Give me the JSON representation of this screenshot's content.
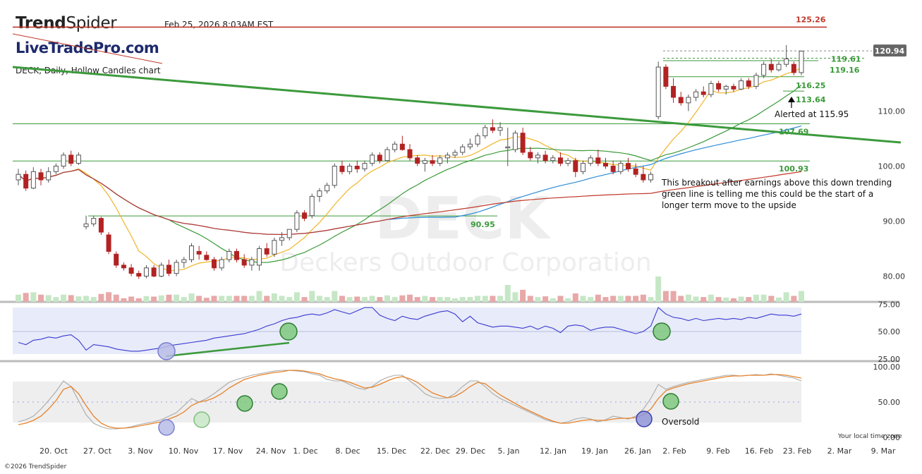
{
  "header": {
    "brand_bold": "Trend",
    "brand_light": "Spider",
    "datetime": "Feb 25, 2026 8:03AM EST",
    "watermark_site": "LiveTradePro.com",
    "chart_label": "DECK, Daily, Hollow Candles chart",
    "copyright": "©2026 TrendSpider",
    "local_time_note": "Your local time zone"
  },
  "colors": {
    "up": "#ffffff",
    "down": "#b22222",
    "ma_fast": "#f0b429",
    "ma_mid": "#3a9a3a",
    "ma_slow": "#2b8cd6",
    "ma_long": "#c0392b",
    "trendline": "#3c9a3c",
    "rsi": "#3a3ad0",
    "stoch_k": "#aaaaaa",
    "stoch_d": "#e8822a",
    "alert_line": "#c0392b"
  },
  "chart_data": [
    {
      "type": "candlestick",
      "title": "DECK, Daily, Hollow Candles chart",
      "watermark_symbol": "DECK",
      "watermark_name": "Deckers Outdoor Corporation",
      "price_ticks": [
        80.0,
        90.0,
        100.0,
        110.0
      ],
      "last_price": "120.94",
      "ylim": [
        77,
        126
      ],
      "date_ticks": [
        "20. Oct",
        "27. Oct",
        "3. Nov",
        "10. Nov",
        "17. Nov",
        "24. Nov",
        "1. Dec",
        "8. Dec",
        "15. Dec",
        "22. Dec",
        "29. Dec",
        "5. Jan",
        "12. Jan",
        "19. Jan",
        "26. Jan",
        "2. Feb",
        "9. Feb",
        "16. Feb",
        "23. Feb",
        "2. Mar",
        "9. Mar"
      ],
      "horizontal_levels": [
        {
          "label": "125.26",
          "value": 125.26,
          "color": "#c0392b"
        },
        {
          "label": "119.61",
          "value": 119.61,
          "color": "#3a9a3a"
        },
        {
          "label": "119.16",
          "value": 119.16,
          "color": "#3a9a3a"
        },
        {
          "label": "116.25",
          "value": 116.25,
          "color": "#3a9a3a"
        },
        {
          "label": "113.64",
          "value": 113.64,
          "color": "#3a9a3a"
        },
        {
          "label": "107.69",
          "value": 107.69,
          "color": "#3a9a3a"
        },
        {
          "label": "100.93",
          "value": 100.93,
          "color": "#3a9a3a"
        },
        {
          "label": "90.95",
          "value": 90.95,
          "color": "#3a9a3a"
        }
      ],
      "annotations": [
        {
          "text": "Alerted at 115.95"
        },
        {
          "text": "This breakout after earnings above this down trending green line is telling me this could be the start of a longer term move to the upside"
        }
      ],
      "candles": [
        [
          97.5,
          99.5,
          96.5,
          98.5
        ],
        [
          98.5,
          99.2,
          95.5,
          96.0
        ],
        [
          96.0,
          99.8,
          95.8,
          99.0
        ],
        [
          98.8,
          99.5,
          96.5,
          97.5
        ],
        [
          97.5,
          99.8,
          97.0,
          99.0
        ],
        [
          99.0,
          100.5,
          98.5,
          100.0
        ],
        [
          100.0,
          102.5,
          99.5,
          102.0
        ],
        [
          102.0,
          102.8,
          100.0,
          100.5
        ],
        [
          100.5,
          102.5,
          100.2,
          102.0
        ],
        [
          89.0,
          91.0,
          88.5,
          89.5
        ],
        [
          89.5,
          91.0,
          89.0,
          90.5
        ],
        [
          90.5,
          90.8,
          87.5,
          88.0
        ],
        [
          87.5,
          88.0,
          84.0,
          84.5
        ],
        [
          84.0,
          84.5,
          81.5,
          82.0
        ],
        [
          82.0,
          82.5,
          81.0,
          81.5
        ],
        [
          81.5,
          82.2,
          80.0,
          80.5
        ],
        [
          80.5,
          81.0,
          79.5,
          80.0
        ],
        [
          80.0,
          82.0,
          79.6,
          81.5
        ],
        [
          81.5,
          82.0,
          79.8,
          80.0
        ],
        [
          80.0,
          82.5,
          79.8,
          82.0
        ],
        [
          82.0,
          83.0,
          80.0,
          80.5
        ],
        [
          80.5,
          83.0,
          80.0,
          82.5
        ],
        [
          82.5,
          83.5,
          81.5,
          83.0
        ],
        [
          83.0,
          86.0,
          82.5,
          85.5
        ],
        [
          84.5,
          85.5,
          83.0,
          84.0
        ],
        [
          83.8,
          84.5,
          82.8,
          83.0
        ],
        [
          83.0,
          83.5,
          81.0,
          81.5
        ],
        [
          81.5,
          83.5,
          81.0,
          83.0
        ],
        [
          83.0,
          85.0,
          82.5,
          84.5
        ],
        [
          84.5,
          85.0,
          82.5,
          83.0
        ],
        [
          83.0,
          84.0,
          81.5,
          82.0
        ],
        [
          82.0,
          83.5,
          81.0,
          83.0
        ],
        [
          82.0,
          85.5,
          81.0,
          85.0
        ],
        [
          85.0,
          86.0,
          83.5,
          84.0
        ],
        [
          84.0,
          87.0,
          83.5,
          86.5
        ],
        [
          86.5,
          88.0,
          85.5,
          87.0
        ],
        [
          87.0,
          88.5,
          86.5,
          88.5
        ],
        [
          88.5,
          92.0,
          88.0,
          91.5
        ],
        [
          91.5,
          92.0,
          90.0,
          90.5
        ],
        [
          91.0,
          95.0,
          90.5,
          94.5
        ],
        [
          94.5,
          96.0,
          93.5,
          95.5
        ],
        [
          95.5,
          97.0,
          95.0,
          96.5
        ],
        [
          96.5,
          100.5,
          96.0,
          100.0
        ],
        [
          100.0,
          101.0,
          98.5,
          99.0
        ],
        [
          99.0,
          100.5,
          98.5,
          100.0
        ],
        [
          100.0,
          101.0,
          98.8,
          99.5
        ],
        [
          99.5,
          101.0,
          99.0,
          100.5
        ],
        [
          100.5,
          102.5,
          100.0,
          102.0
        ],
        [
          102.0,
          102.5,
          100.5,
          101.0
        ],
        [
          101.0,
          103.5,
          100.8,
          103.0
        ],
        [
          103.0,
          104.5,
          102.5,
          104.0
        ],
        [
          104.0,
          105.5,
          102.8,
          103.0
        ],
        [
          103.0,
          104.0,
          101.0,
          101.5
        ],
        [
          101.5,
          102.0,
          100.0,
          100.5
        ],
        [
          100.5,
          101.5,
          99.0,
          101.0
        ],
        [
          101.0,
          102.0,
          100.0,
          100.5
        ],
        [
          100.5,
          102.0,
          100.0,
          101.5
        ],
        [
          101.5,
          102.5,
          100.5,
          102.0
        ],
        [
          102.0,
          103.0,
          101.5,
          102.5
        ],
        [
          102.5,
          104.0,
          102.0,
          103.5
        ],
        [
          103.5,
          105.0,
          103.0,
          104.0
        ],
        [
          104.0,
          106.0,
          103.5,
          105.5
        ],
        [
          105.5,
          107.5,
          105.0,
          107.0
        ],
        [
          107.0,
          108.5,
          106.0,
          106.5
        ],
        [
          106.5,
          108.0,
          105.5,
          107.0
        ],
        [
          103.5,
          107.0,
          100.0,
          103.5
        ],
        [
          103.0,
          106.5,
          102.5,
          106.0
        ],
        [
          106.0,
          107.0,
          102.0,
          102.5
        ],
        [
          102.5,
          103.5,
          101.0,
          101.5
        ],
        [
          101.5,
          102.5,
          100.5,
          102.0
        ],
        [
          102.0,
          102.8,
          100.5,
          101.0
        ],
        [
          101.0,
          102.0,
          100.5,
          101.5
        ],
        [
          101.5,
          102.5,
          100.0,
          100.5
        ],
        [
          100.5,
          101.5,
          100.0,
          101.0
        ],
        [
          101.0,
          101.5,
          98.0,
          99.0
        ],
        [
          99.0,
          101.0,
          98.5,
          100.5
        ],
        [
          100.5,
          102.0,
          100.0,
          101.5
        ],
        [
          101.5,
          103.0,
          100.0,
          100.5
        ],
        [
          100.5,
          101.5,
          99.5,
          100.0
        ],
        [
          100.0,
          101.0,
          98.5,
          99.0
        ],
        [
          99.0,
          101.0,
          98.5,
          100.5
        ],
        [
          100.5,
          101.5,
          99.0,
          99.5
        ],
        [
          99.5,
          100.5,
          98.0,
          98.5
        ],
        [
          98.5,
          100.0,
          97.0,
          97.5
        ],
        [
          97.5,
          99.0,
          97.0,
          98.5
        ],
        [
          109.0,
          119.0,
          108.5,
          118.0
        ],
        [
          118.0,
          118.5,
          114.0,
          114.5
        ],
        [
          114.5,
          116.0,
          111.5,
          112.5
        ],
        [
          112.5,
          113.5,
          111.0,
          111.5
        ],
        [
          111.5,
          113.0,
          110.0,
          112.5
        ],
        [
          112.5,
          114.0,
          111.8,
          113.5
        ],
        [
          113.5,
          114.5,
          112.5,
          113.0
        ],
        [
          113.0,
          115.5,
          112.5,
          115.0
        ],
        [
          115.0,
          115.5,
          113.5,
          114.0
        ],
        [
          114.0,
          114.8,
          113.0,
          114.5
        ],
        [
          114.5,
          115.0,
          113.5,
          114.0
        ],
        [
          114.0,
          116.0,
          113.8,
          115.5
        ],
        [
          115.5,
          116.0,
          114.0,
          114.5
        ],
        [
          114.5,
          117.0,
          114.0,
          116.5
        ],
        [
          116.5,
          119.0,
          116.0,
          118.5
        ],
        [
          118.5,
          119.5,
          117.0,
          117.5
        ],
        [
          117.5,
          119.0,
          117.2,
          118.5
        ],
        [
          118.5,
          122.0,
          118.0,
          119.5
        ],
        [
          118.5,
          119.0,
          116.5,
          117.0
        ],
        [
          117.0,
          121.0,
          116.5,
          120.9
        ]
      ]
    },
    {
      "type": "line",
      "indicator": "RSI",
      "ticks": [
        "75.00",
        "50.00",
        "25.00"
      ],
      "ylim": [
        25,
        75
      ],
      "values": [
        40,
        38,
        42,
        43,
        45,
        44,
        46,
        47,
        42,
        33,
        38,
        37,
        36,
        34,
        33,
        32,
        32,
        33,
        34,
        35,
        37,
        38,
        39,
        40,
        41,
        42,
        44,
        45,
        46,
        47,
        48,
        50,
        52,
        55,
        57,
        60,
        62,
        63,
        65,
        66,
        65,
        67,
        70,
        68,
        66,
        69,
        72,
        72,
        65,
        62,
        60,
        64,
        62,
        61,
        64,
        66,
        68,
        69,
        66,
        59,
        64,
        58,
        56,
        54,
        55,
        55,
        54,
        53,
        55,
        52,
        55,
        53,
        49,
        55,
        56,
        55,
        51,
        53,
        54,
        54,
        52,
        50,
        48,
        50,
        55,
        72,
        66,
        63,
        62,
        60,
        62,
        60,
        61,
        62,
        61,
        62,
        61,
        63,
        62,
        64,
        66,
        65,
        65,
        64,
        66
      ]
    },
    {
      "type": "line",
      "indicator": "Stochastic",
      "ticks": [
        "100.00",
        "50.00",
        "0.00"
      ],
      "ylim": [
        0,
        100
      ],
      "k_values": [
        22,
        25,
        30,
        40,
        52,
        65,
        80,
        72,
        52,
        32,
        20,
        15,
        12,
        12,
        13,
        15,
        18,
        20,
        22,
        25,
        30,
        35,
        45,
        55,
        50,
        55,
        62,
        70,
        78,
        82,
        85,
        88,
        90,
        92,
        94,
        95,
        95,
        94,
        93,
        90,
        88,
        82,
        80,
        80,
        75,
        70,
        68,
        72,
        80,
        85,
        88,
        88,
        80,
        72,
        62,
        57,
        55,
        56,
        62,
        72,
        80,
        80,
        72,
        62,
        55,
        50,
        45,
        40,
        35,
        30,
        25,
        22,
        20,
        22,
        26,
        28,
        26,
        22,
        25,
        30,
        28,
        26,
        30,
        40,
        55,
        75,
        68,
        72,
        75,
        78,
        80,
        82,
        84,
        86,
        88,
        88,
        87,
        88,
        89,
        88,
        90,
        88,
        86,
        84,
        80
      ],
      "d_values": [
        18,
        20,
        24,
        30,
        40,
        52,
        68,
        72,
        62,
        45,
        30,
        20,
        15,
        13,
        13,
        14,
        16,
        18,
        20,
        22,
        26,
        30,
        36,
        45,
        50,
        52,
        56,
        62,
        70,
        76,
        82,
        85,
        88,
        90,
        92,
        93,
        95,
        95,
        94,
        92,
        90,
        86,
        83,
        81,
        78,
        74,
        70,
        71,
        75,
        80,
        84,
        86,
        83,
        78,
        70,
        63,
        59,
        56,
        58,
        64,
        72,
        78,
        76,
        68,
        60,
        54,
        48,
        42,
        37,
        32,
        27,
        23,
        20,
        20,
        22,
        24,
        25,
        24,
        24,
        26,
        27,
        27,
        28,
        32,
        40,
        55,
        66,
        70,
        73,
        76,
        78,
        80,
        82,
        84,
        86,
        87,
        87,
        88,
        88,
        88,
        89,
        89,
        88,
        86,
        84
      ],
      "annotation": "Oversold"
    }
  ]
}
